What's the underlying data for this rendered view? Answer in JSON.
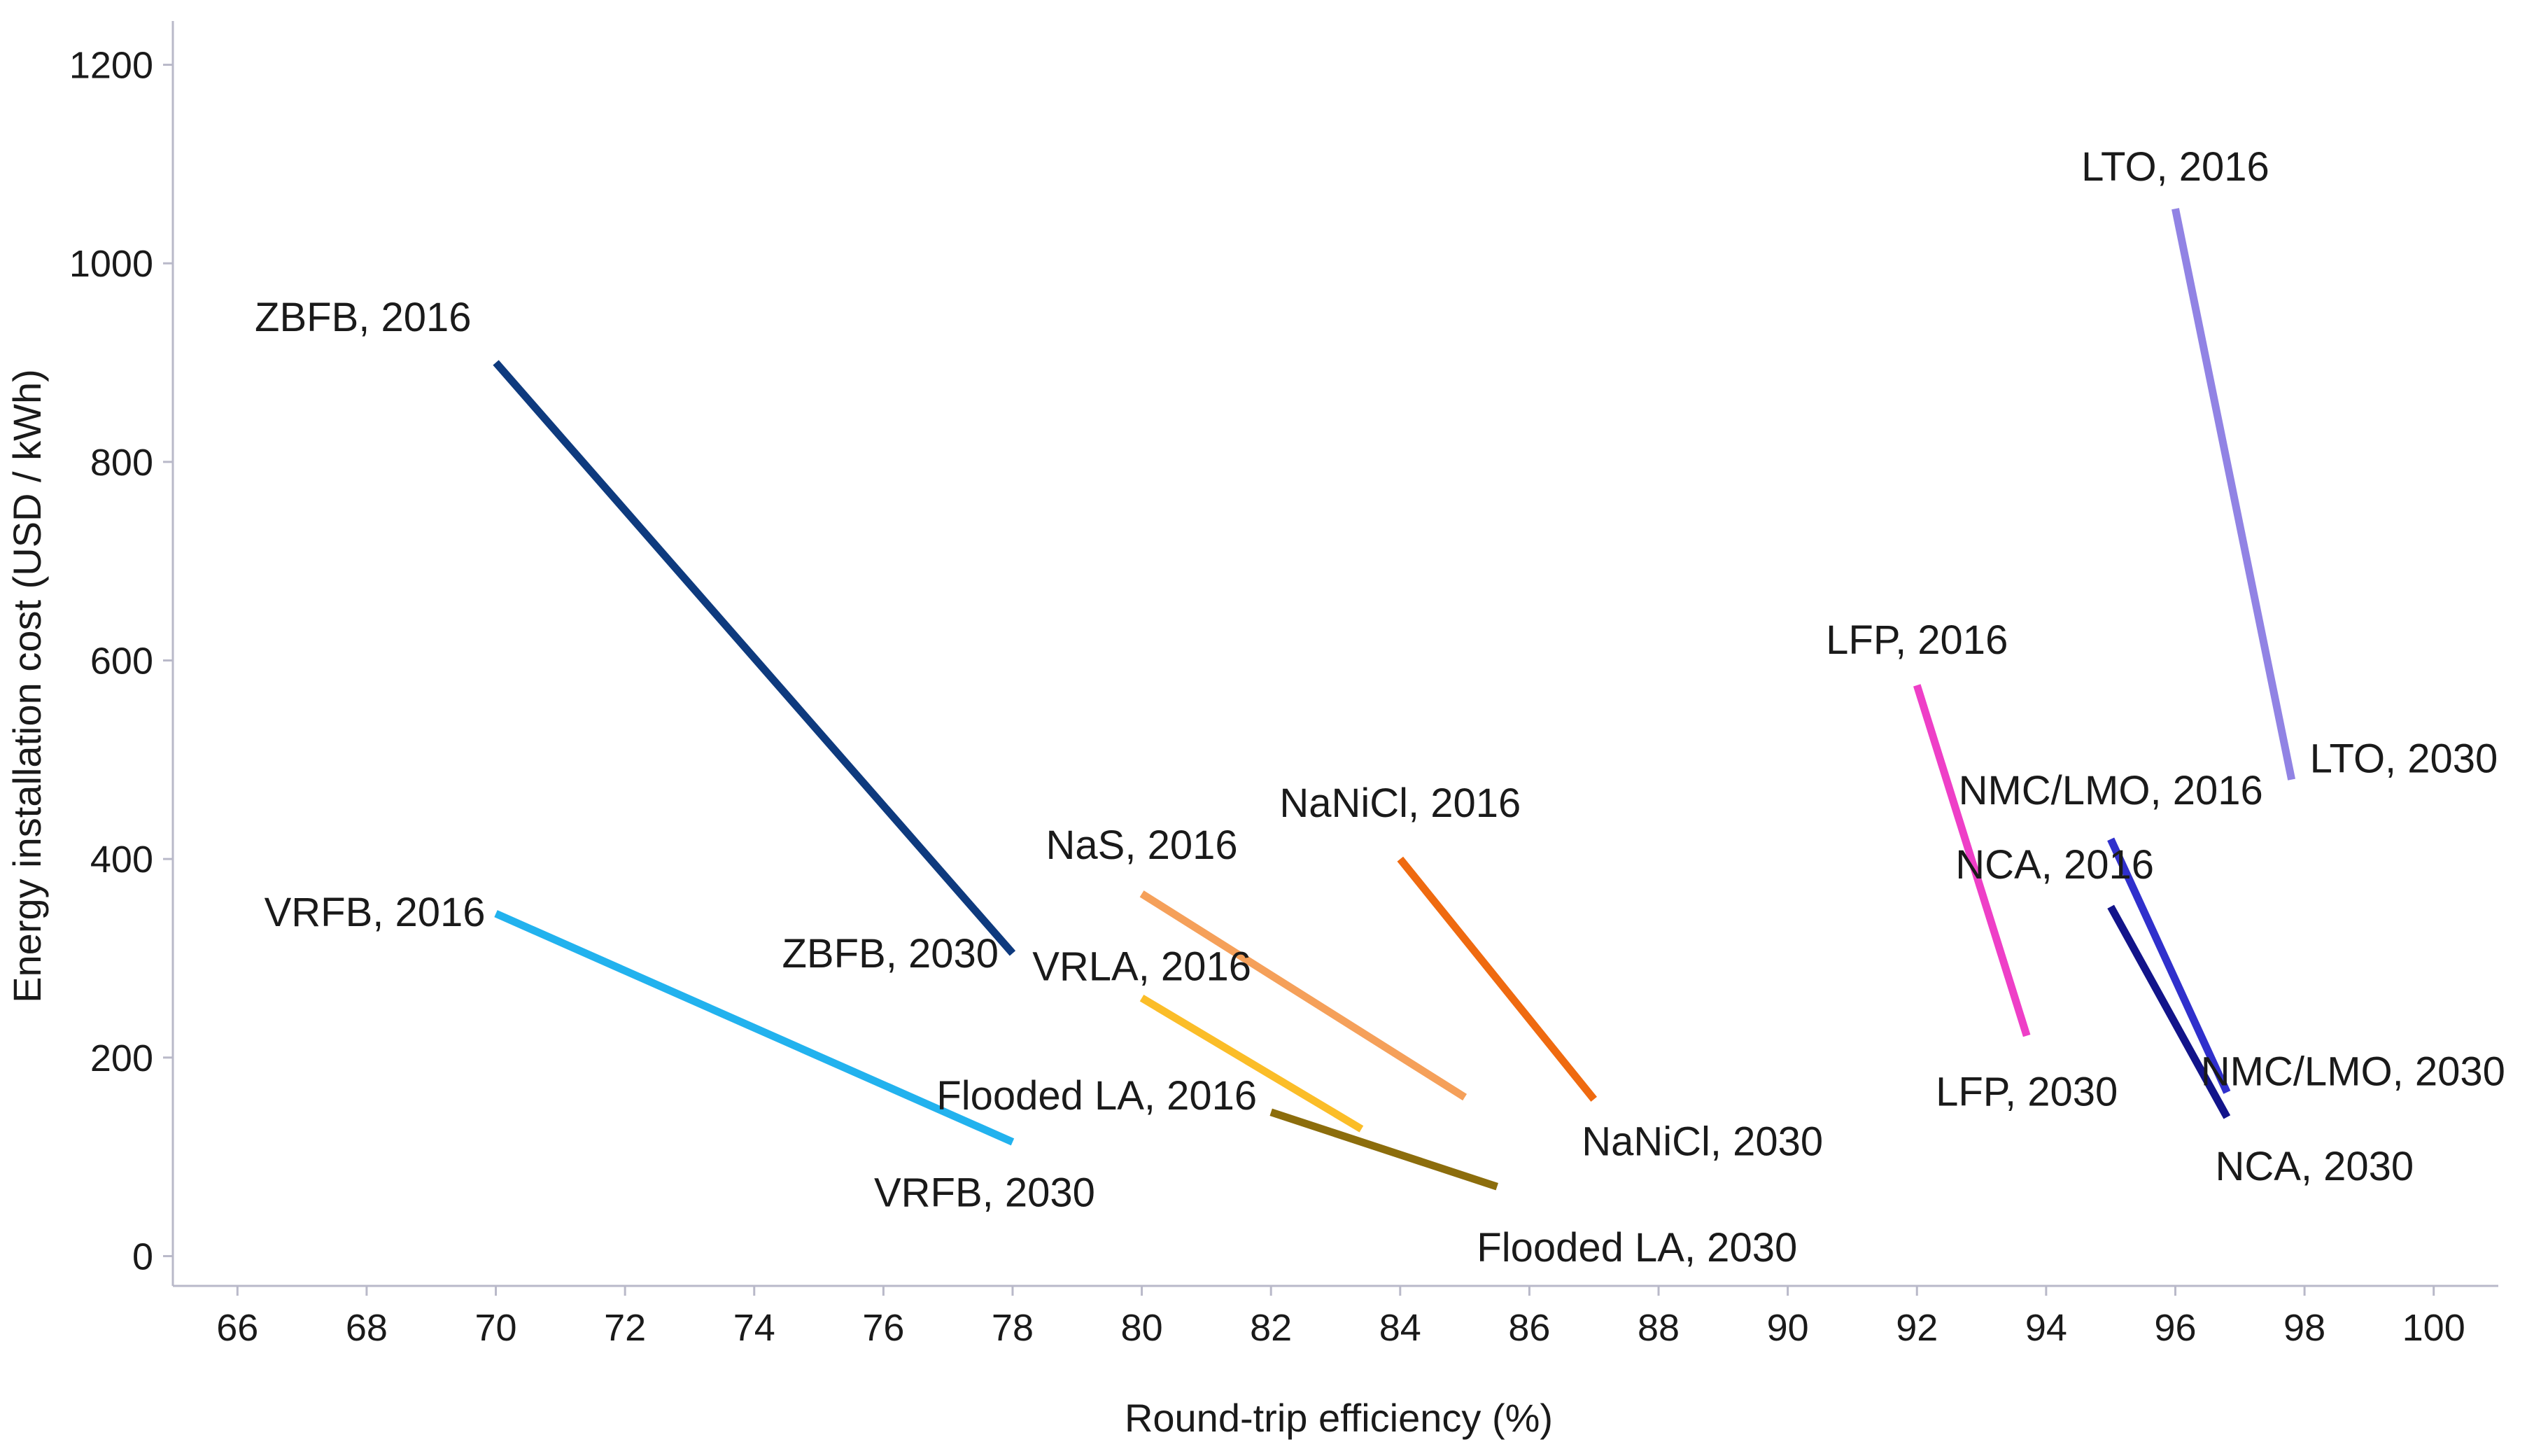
{
  "chart_data": {
    "type": "line",
    "title": "",
    "xlabel": "Round-trip efficiency (%)",
    "ylabel": "Energy installation cost (USD / kWh)",
    "xlim": [
      65,
      101
    ],
    "ylim": [
      -30,
      1230
    ],
    "x_ticks": [
      "66",
      "68",
      "70",
      "72",
      "74",
      "76",
      "78",
      "80",
      "82",
      "84",
      "86",
      "88",
      "90",
      "92",
      "94",
      "96",
      "98",
      "100"
    ],
    "y_ticks": [
      "0",
      "200",
      "400",
      "600",
      "800",
      "1000",
      "1200"
    ],
    "grid": false,
    "legend": "none",
    "series": [
      {
        "name": "ZBFB",
        "color": "#0e3a7e",
        "points": [
          {
            "x": 70.0,
            "y": 900,
            "label": "ZBFB, 2016"
          },
          {
            "x": 78.0,
            "y": 305,
            "label": "ZBFB, 2030"
          }
        ]
      },
      {
        "name": "VRFB",
        "color": "#22b2ee",
        "points": [
          {
            "x": 70.0,
            "y": 345,
            "label": "VRFB, 2016"
          },
          {
            "x": 78.0,
            "y": 115,
            "label": "VRFB, 2030"
          }
        ]
      },
      {
        "name": "NaS",
        "color": "#f5a05a",
        "points": [
          {
            "x": 80.0,
            "y": 365,
            "label": "NaS, 2016"
          },
          {
            "x": 85.0,
            "y": 160,
            "label": ""
          }
        ]
      },
      {
        "name": "VRLA",
        "color": "#fbbd28",
        "points": [
          {
            "x": 80.0,
            "y": 260,
            "label": "VRLA, 2016"
          },
          {
            "x": 83.4,
            "y": 128,
            "label": ""
          }
        ]
      },
      {
        "name": "Flooded LA",
        "color": "#8c6d0c",
        "points": [
          {
            "x": 82.0,
            "y": 145,
            "label": "Flooded LA, 2016"
          },
          {
            "x": 85.5,
            "y": 70,
            "label": "Flooded LA, 2030"
          }
        ]
      },
      {
        "name": "NaNiCl",
        "color": "#ef6a10",
        "points": [
          {
            "x": 84.0,
            "y": 400,
            "label": "NaNiCl, 2016"
          },
          {
            "x": 87.0,
            "y": 158,
            "label": "NaNiCl, 2030"
          }
        ]
      },
      {
        "name": "LFP",
        "color": "#ee3fc7",
        "points": [
          {
            "x": 92.0,
            "y": 575,
            "label": "LFP, 2016"
          },
          {
            "x": 93.7,
            "y": 222,
            "label": "LFP, 2030"
          }
        ]
      },
      {
        "name": "NMC/LMO",
        "color": "#3030cc",
        "points": [
          {
            "x": 95.0,
            "y": 420,
            "label": "NMC/LMO, 2016"
          },
          {
            "x": 96.8,
            "y": 165,
            "label": "NMC/LMO, 2030"
          }
        ]
      },
      {
        "name": "NCA",
        "color": "#12148a",
        "points": [
          {
            "x": 95.0,
            "y": 352,
            "label": "NCA, 2016"
          },
          {
            "x": 96.8,
            "y": 140,
            "label": "NCA, 2030"
          }
        ]
      },
      {
        "name": "LTO",
        "color": "#9183e4",
        "points": [
          {
            "x": 96.0,
            "y": 1055,
            "label": "LTO, 2016"
          },
          {
            "x": 97.8,
            "y": 480,
            "label": "LTO, 2030"
          }
        ]
      }
    ]
  }
}
